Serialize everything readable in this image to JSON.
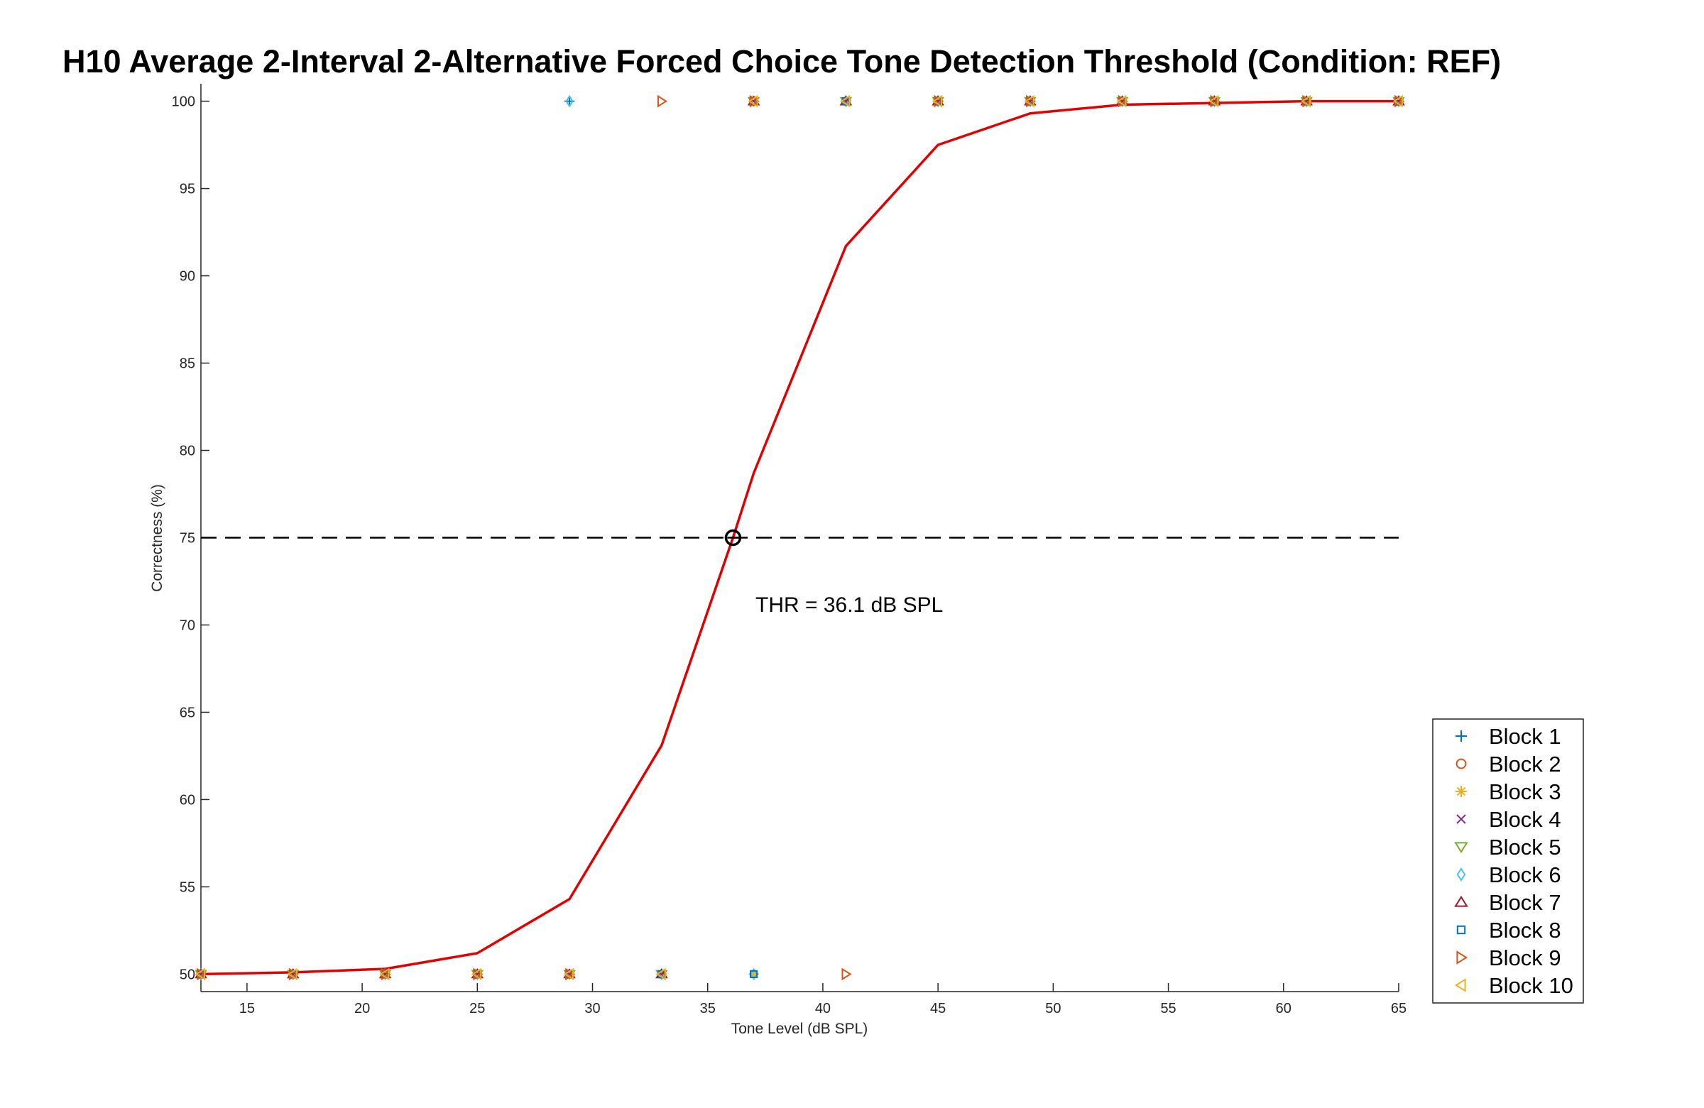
{
  "chart_data": {
    "type": "scatter",
    "title": "H10 Average 2-Interval 2-Alternative Forced Choice Tone Detection Threshold (Condition: REF)",
    "xlabel": "Tone Level (dB SPL)",
    "ylabel": "Correctness (%)",
    "xlim": [
      13,
      65
    ],
    "ylim": [
      49,
      101
    ],
    "xticks": [
      15,
      20,
      25,
      30,
      35,
      40,
      45,
      50,
      55,
      60,
      65
    ],
    "yticks": [
      50,
      55,
      60,
      65,
      70,
      75,
      80,
      85,
      90,
      95,
      100
    ],
    "grid": false,
    "legend_position": "bottom-right outside",
    "fit_curve": {
      "color": "#e00000",
      "x": [
        13,
        17,
        21,
        25,
        29,
        33,
        36.1,
        37,
        41,
        45,
        49,
        53,
        57,
        61,
        65
      ],
      "y": [
        50.0,
        50.1,
        50.3,
        51.2,
        54.3,
        63.1,
        75.0,
        78.7,
        91.7,
        97.5,
        99.3,
        99.8,
        99.9,
        100.0,
        100.0
      ]
    },
    "threshold_line": {
      "y": 75,
      "x_range": [
        13,
        65
      ],
      "style": "dashed",
      "color": "#000000"
    },
    "threshold_point": {
      "x": 36.1,
      "y": 75
    },
    "annotation": "THR = 36.1 dB SPL",
    "series": [
      {
        "name": "Block 1",
        "marker": "plus",
        "color": "#0072BD",
        "points": [
          [
            13,
            50
          ],
          [
            17,
            50
          ],
          [
            21,
            50
          ],
          [
            25,
            50
          ],
          [
            29,
            100
          ],
          [
            33,
            50
          ],
          [
            37,
            50
          ],
          [
            41,
            100
          ],
          [
            45,
            100
          ],
          [
            49,
            100
          ],
          [
            53,
            100
          ],
          [
            57,
            100
          ],
          [
            61,
            100
          ],
          [
            65,
            100
          ]
        ]
      },
      {
        "name": "Block 2",
        "marker": "circle",
        "color": "#D95319",
        "points": [
          [
            13,
            50
          ],
          [
            17,
            50
          ],
          [
            21,
            50
          ],
          [
            25,
            50
          ],
          [
            29,
            50
          ],
          [
            33,
            50
          ],
          [
            37,
            100
          ],
          [
            41,
            100
          ],
          [
            45,
            100
          ],
          [
            49,
            100
          ],
          [
            53,
            100
          ],
          [
            57,
            100
          ],
          [
            61,
            100
          ],
          [
            65,
            100
          ]
        ]
      },
      {
        "name": "Block 3",
        "marker": "asterisk",
        "color": "#EDB120",
        "points": [
          [
            13,
            50
          ],
          [
            17,
            50
          ],
          [
            21,
            50
          ],
          [
            25,
            50
          ],
          [
            29,
            50
          ],
          [
            33,
            50
          ],
          [
            37,
            50
          ],
          [
            41,
            100
          ],
          [
            45,
            100
          ],
          [
            49,
            100
          ],
          [
            53,
            100
          ],
          [
            57,
            100
          ],
          [
            61,
            100
          ],
          [
            65,
            100
          ]
        ]
      },
      {
        "name": "Block 4",
        "marker": "x",
        "color": "#7E2F8E",
        "points": [
          [
            13,
            50
          ],
          [
            17,
            50
          ],
          [
            21,
            50
          ],
          [
            25,
            50
          ],
          [
            29,
            50
          ],
          [
            33,
            50
          ],
          [
            37,
            100
          ],
          [
            41,
            100
          ],
          [
            45,
            100
          ],
          [
            49,
            100
          ],
          [
            53,
            100
          ],
          [
            57,
            100
          ],
          [
            61,
            100
          ],
          [
            65,
            100
          ]
        ]
      },
      {
        "name": "Block 5",
        "marker": "triangle-down",
        "color": "#77AC30",
        "points": [
          [
            13,
            50
          ],
          [
            17,
            50
          ],
          [
            21,
            50
          ],
          [
            25,
            50
          ],
          [
            29,
            50
          ],
          [
            33,
            50
          ],
          [
            37,
            100
          ],
          [
            41,
            100
          ],
          [
            45,
            100
          ],
          [
            49,
            100
          ],
          [
            53,
            100
          ],
          [
            57,
            100
          ],
          [
            61,
            100
          ],
          [
            65,
            100
          ]
        ]
      },
      {
        "name": "Block 6",
        "marker": "diamond",
        "color": "#4DBEEE",
        "points": [
          [
            13,
            50
          ],
          [
            17,
            50
          ],
          [
            21,
            50
          ],
          [
            25,
            50
          ],
          [
            29,
            100
          ],
          [
            33,
            50
          ],
          [
            37,
            50
          ],
          [
            41,
            100
          ],
          [
            45,
            100
          ],
          [
            49,
            100
          ],
          [
            53,
            100
          ],
          [
            57,
            100
          ],
          [
            61,
            100
          ],
          [
            65,
            100
          ]
        ]
      },
      {
        "name": "Block 7",
        "marker": "triangle-up",
        "color": "#A2142F",
        "points": [
          [
            13,
            50
          ],
          [
            17,
            50
          ],
          [
            21,
            50
          ],
          [
            25,
            50
          ],
          [
            29,
            50
          ],
          [
            33,
            50
          ],
          [
            37,
            100
          ],
          [
            41,
            100
          ],
          [
            45,
            100
          ],
          [
            49,
            100
          ],
          [
            53,
            100
          ],
          [
            57,
            100
          ],
          [
            61,
            100
          ],
          [
            65,
            100
          ]
        ]
      },
      {
        "name": "Block 8",
        "marker": "square",
        "color": "#0072BD",
        "points": [
          [
            13,
            50
          ],
          [
            17,
            50
          ],
          [
            21,
            50
          ],
          [
            25,
            50
          ],
          [
            29,
            50
          ],
          [
            33,
            50
          ],
          [
            37,
            50
          ],
          [
            41,
            100
          ],
          [
            45,
            100
          ],
          [
            49,
            100
          ],
          [
            53,
            100
          ],
          [
            57,
            100
          ],
          [
            61,
            100
          ],
          [
            65,
            100
          ]
        ]
      },
      {
        "name": "Block 9",
        "marker": "triangle-right",
        "color": "#D95319",
        "points": [
          [
            13,
            50
          ],
          [
            17,
            50
          ],
          [
            21,
            50
          ],
          [
            25,
            50
          ],
          [
            29,
            50
          ],
          [
            33,
            100
          ],
          [
            37,
            100
          ],
          [
            41,
            50
          ],
          [
            45,
            100
          ],
          [
            49,
            100
          ],
          [
            53,
            100
          ],
          [
            57,
            100
          ],
          [
            61,
            100
          ],
          [
            65,
            100
          ]
        ]
      },
      {
        "name": "Block 10",
        "marker": "triangle-left",
        "color": "#EDB120",
        "points": [
          [
            13,
            50
          ],
          [
            17,
            50
          ],
          [
            21,
            50
          ],
          [
            25,
            50
          ],
          [
            29,
            50
          ],
          [
            33,
            50
          ],
          [
            37,
            100
          ],
          [
            41,
            100
          ],
          [
            45,
            100
          ],
          [
            49,
            100
          ],
          [
            53,
            100
          ],
          [
            57,
            100
          ],
          [
            61,
            100
          ],
          [
            65,
            100
          ]
        ]
      }
    ]
  }
}
